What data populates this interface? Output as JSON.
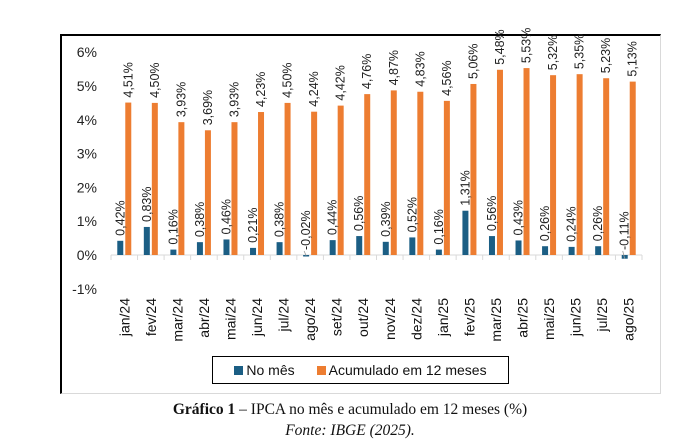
{
  "chart_data": {
    "type": "bar",
    "title": "",
    "xlabel": "",
    "ylabel": "",
    "ylim": [
      -1,
      6
    ],
    "y_ticks": [
      "6%",
      "5%",
      "4%",
      "3%",
      "2%",
      "1%",
      "0%",
      "-1%"
    ],
    "y_tick_values": [
      6,
      5,
      4,
      3,
      2,
      1,
      0,
      -1
    ],
    "grid": false,
    "legend_position": "bottom",
    "categories": [
      "jan/24",
      "fev/24",
      "mar/24",
      "abr/24",
      "mai/24",
      "jun/24",
      "jul/24",
      "ago/24",
      "set/24",
      "out/24",
      "nov/24",
      "dez/24",
      "jan/25",
      "fev/25",
      "mar/25",
      "abr/25",
      "mai/25",
      "jun/25",
      "jul/25",
      "ago/25"
    ],
    "series": [
      {
        "name": "No mês",
        "color": "#1b5e84",
        "values": [
          0.42,
          0.83,
          0.16,
          0.38,
          0.46,
          0.21,
          0.38,
          -0.02,
          0.44,
          0.56,
          0.39,
          0.52,
          0.16,
          1.31,
          0.56,
          0.43,
          0.26,
          0.24,
          0.26,
          -0.11
        ],
        "labels": [
          "0,42%",
          "0,83%",
          "0,16%",
          "0,38%",
          "0,46%",
          "0,21%",
          "0,38%",
          "-0,02%",
          "0,44%",
          "0,56%",
          "0,39%",
          "0,52%",
          "0,16%",
          "1,31%",
          "0,56%",
          "0,43%",
          "0,26%",
          "0,24%",
          "0,26%",
          "-0,11%"
        ]
      },
      {
        "name": "Acumulado em 12 meses",
        "color": "#ed7d31",
        "values": [
          4.51,
          4.5,
          3.93,
          3.69,
          3.93,
          4.23,
          4.5,
          4.24,
          4.42,
          4.76,
          4.87,
          4.83,
          4.56,
          5.06,
          5.48,
          5.53,
          5.32,
          5.35,
          5.23,
          5.13
        ],
        "labels": [
          "4,51%",
          "4,50%",
          "3,93%",
          "3,69%",
          "3,93%",
          "4,23%",
          "4,50%",
          "4,24%",
          "4,42%",
          "4,76%",
          "4,87%",
          "4,83%",
          "4,56%",
          "5,06%",
          "5,48%",
          "5,53%",
          "5,32%",
          "5,35%",
          "5,23%",
          "5,13%"
        ]
      }
    ]
  },
  "legend": {
    "items": [
      {
        "label": "No mês",
        "color": "#1b5e84"
      },
      {
        "label": "Acumulado em 12 meses",
        "color": "#ed7d31"
      }
    ]
  },
  "caption": {
    "title_bold": "Gráfico 1",
    "title_rest": " – IPCA no mês e acumulado em 12 meses (%)",
    "source": "Fonte: IBGE (2025)."
  },
  "colors": {
    "axis": "#d9d9d9",
    "text": "#222222"
  }
}
